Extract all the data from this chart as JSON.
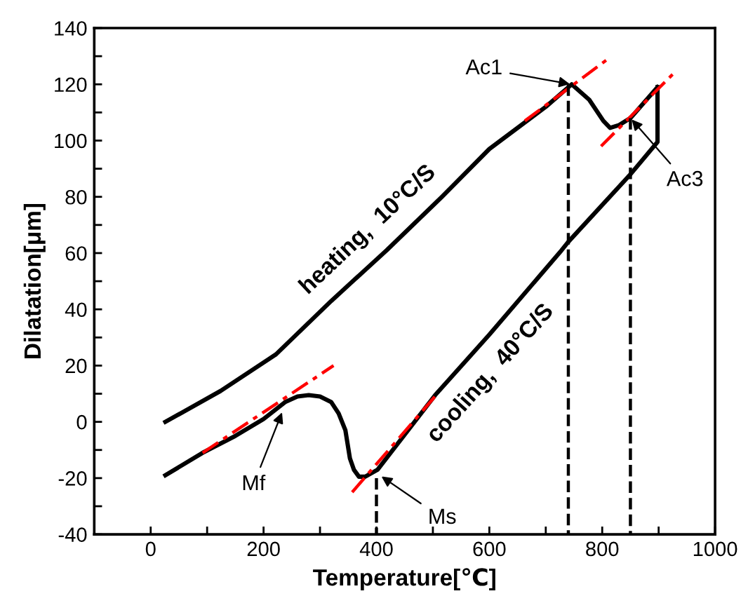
{
  "chart_data": {
    "type": "line",
    "xlabel": "Temperature[℃]",
    "ylabel": "Dilatation[μm]",
    "xlim": [
      -100,
      1000
    ],
    "ylim": [
      -40,
      140
    ],
    "xticks": [
      0,
      {
        "value": 100,
        "label": null
      },
      200,
      {
        "value": 300,
        "label": null
      },
      400,
      {
        "value": 500,
        "label": null
      },
      600,
      {
        "value": 700,
        "label": null
      },
      800,
      {
        "value": 900,
        "label": null
      },
      1000
    ],
    "yticks": [
      -40,
      {
        "value": -30,
        "label": null
      },
      -20,
      {
        "value": -10,
        "label": null
      },
      0,
      {
        "value": 10,
        "label": null
      },
      20,
      {
        "value": 30,
        "label": null
      },
      40,
      {
        "value": 50,
        "label": null
      },
      60,
      {
        "value": 70,
        "label": null
      },
      80,
      {
        "value": 90,
        "label": null
      },
      100,
      {
        "value": 110,
        "label": null
      },
      120,
      {
        "value": 130,
        "label": null
      },
      140
    ],
    "grid": false,
    "marker": "none",
    "series": [
      {
        "name": "heating,  10°C/S",
        "color": "#000000",
        "line_style": "solid",
        "x": [
          26,
          124,
          222,
          320,
          418,
          516,
          600,
          700,
          746,
          777,
          802,
          814,
          830,
          850,
          898
        ],
        "values": [
          0,
          11,
          24,
          43,
          61,
          80,
          97,
          112,
          120,
          114.5,
          107,
          104.5,
          105.5,
          108,
          119
        ]
      },
      {
        "name": "cooling,  40°C/S",
        "color": "#000000",
        "line_style": "solid",
        "x": [
          898,
          898,
          850,
          740,
          728,
          600,
          504,
          402,
          380,
          369,
          360,
          353,
          345,
          333,
          320,
          300,
          280,
          260,
          238,
          200,
          150,
          92,
          26
        ],
        "values": [
          119,
          99.5,
          88,
          64,
          61,
          31,
          9.5,
          -17,
          -19.5,
          -19.5,
          -17,
          -13,
          -3,
          3,
          7,
          9,
          9.5,
          9,
          7,
          1,
          -5,
          -11,
          -19
        ]
      },
      {
        "color": "#ff0000",
        "line_style": "dashed",
        "x": [
          663,
          810
        ],
        "values": [
          107,
          129
        ]
      },
      {
        "color": "#ff0000",
        "line_style": "dashed",
        "x": [
          798,
          932
        ],
        "values": [
          98,
          125
        ]
      },
      {
        "color": "#ff0000",
        "line_style": "dashed",
        "x": [
          92,
          324
        ],
        "values": [
          -11,
          20
        ]
      },
      {
        "color": "#ff0000",
        "line_style": "dashed",
        "x": [
          357,
          508
        ],
        "values": [
          -25,
          10
        ]
      },
      {
        "color": "#000000",
        "line_style": "dashed",
        "x": [
          740,
          740
        ],
        "values": [
          120,
          -40
        ]
      },
      {
        "color": "#000000",
        "line_style": "dashed",
        "x": [
          850,
          850
        ],
        "values": [
          108,
          -40
        ]
      },
      {
        "color": "#000000",
        "line_style": "dashed",
        "x": [
          400,
          400
        ],
        "values": [
          -20,
          -40
        ]
      }
    ],
    "annotations": [
      {
        "text": "Ac1",
        "x": 746,
        "y": 120
      },
      {
        "text": "Ac3",
        "x": 850,
        "y": 108
      },
      {
        "text": "Mf",
        "x": 234,
        "y": 4
      },
      {
        "text": "Ms",
        "x": 406,
        "y": -19
      }
    ]
  }
}
